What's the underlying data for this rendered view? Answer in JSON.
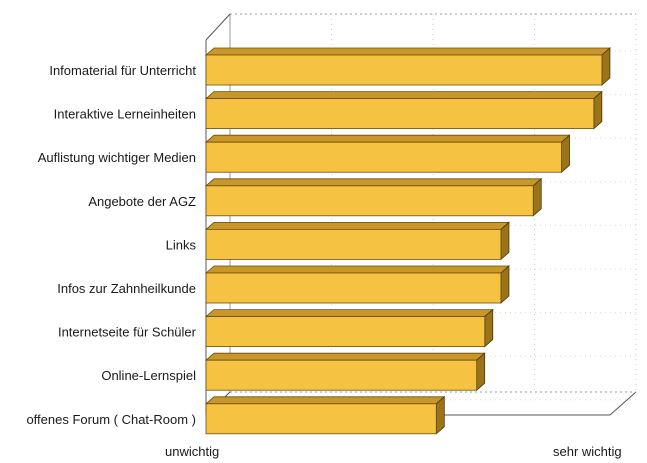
{
  "chart_data": {
    "type": "bar",
    "orientation": "horizontal",
    "three_d": true,
    "categories": [
      "Infomaterial für Unterricht",
      "Interaktive Lerneinheiten",
      "Auflistung wichtiger Medien",
      "Angebote der AGZ",
      "Links",
      "Infos zur Zahnheilkunde",
      "Internetseite für Schüler",
      "Online-Lernspiel",
      "offenes Forum ( Chat-Room )"
    ],
    "values": [
      0.98,
      0.96,
      0.88,
      0.81,
      0.73,
      0.73,
      0.69,
      0.67,
      0.57
    ],
    "xlim": [
      0,
      1
    ],
    "x_axis_left_label": "unwichtig",
    "x_axis_right_label": "sehr wichtig",
    "grid": true,
    "bar_color": "#F5C242",
    "bar_side_color": "#9A7418",
    "bar_top_color": "#C9962A"
  }
}
